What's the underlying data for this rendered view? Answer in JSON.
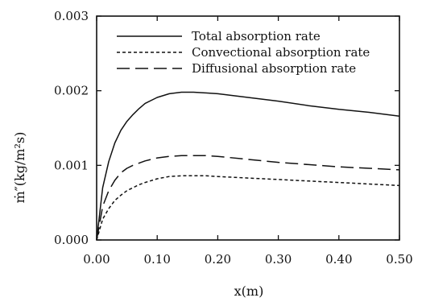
{
  "chart_data": {
    "type": "line",
    "title": "",
    "xlabel": "x(m)",
    "ylabel": "ṁ″(kg/m²s)",
    "xlim": [
      0.0,
      0.5
    ],
    "ylim": [
      0.0,
      0.003
    ],
    "xticks": [
      0.0,
      0.1,
      0.2,
      0.3,
      0.4,
      0.5
    ],
    "xtick_labels": [
      "0.00",
      "0.10",
      "0.20",
      "0.30",
      "0.40",
      "0.50"
    ],
    "yticks": [
      0.0,
      0.001,
      0.002,
      0.003
    ],
    "ytick_labels": [
      "0.000",
      "0.001",
      "0.002",
      "0.003"
    ],
    "grid": false,
    "legend_position": "top-right",
    "series": [
      {
        "name": "Total absorption rate",
        "line_style": "solid",
        "x": [
          0.0,
          0.01,
          0.02,
          0.03,
          0.04,
          0.05,
          0.06,
          0.07,
          0.08,
          0.1,
          0.12,
          0.14,
          0.16,
          0.18,
          0.2,
          0.25,
          0.3,
          0.35,
          0.4,
          0.45,
          0.5
        ],
        "y": [
          0.0,
          0.0007,
          0.00105,
          0.0013,
          0.00147,
          0.00159,
          0.00168,
          0.00176,
          0.00183,
          0.00191,
          0.00196,
          0.00198,
          0.00198,
          0.00197,
          0.00196,
          0.00191,
          0.00186,
          0.0018,
          0.00175,
          0.00171,
          0.00166
        ]
      },
      {
        "name": "Convectional absorption rate",
        "line_style": "dotted",
        "x": [
          0.0,
          0.01,
          0.02,
          0.03,
          0.04,
          0.05,
          0.06,
          0.07,
          0.08,
          0.1,
          0.12,
          0.14,
          0.16,
          0.18,
          0.2,
          0.25,
          0.3,
          0.35,
          0.4,
          0.45,
          0.5
        ],
        "y": [
          0.0,
          0.00028,
          0.00042,
          0.00053,
          0.0006,
          0.00066,
          0.0007,
          0.00074,
          0.00077,
          0.00082,
          0.00085,
          0.00086,
          0.00086,
          0.00086,
          0.00085,
          0.00083,
          0.00081,
          0.00079,
          0.00077,
          0.00075,
          0.00073
        ]
      },
      {
        "name": "Diffusional absorption rate",
        "line_style": "dashed",
        "x": [
          0.0,
          0.01,
          0.02,
          0.03,
          0.04,
          0.05,
          0.06,
          0.07,
          0.08,
          0.1,
          0.12,
          0.14,
          0.16,
          0.18,
          0.2,
          0.25,
          0.3,
          0.35,
          0.4,
          0.45,
          0.5
        ],
        "y": [
          0.0,
          0.00045,
          0.00066,
          0.0008,
          0.0009,
          0.00096,
          0.001,
          0.00103,
          0.00106,
          0.0011,
          0.00112,
          0.00113,
          0.00113,
          0.00113,
          0.00112,
          0.00108,
          0.00104,
          0.00101,
          0.00098,
          0.00096,
          0.00094
        ]
      }
    ]
  }
}
